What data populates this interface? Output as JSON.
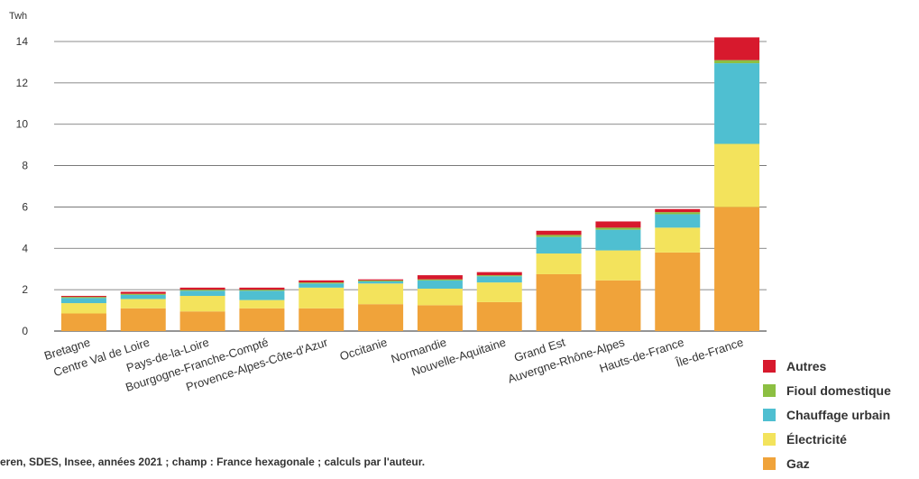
{
  "chart_data": {
    "type": "bar",
    "stacked": true,
    "title": "",
    "xlabel": "",
    "ylabel": "Twh",
    "ylim": [
      0,
      14
    ],
    "yticks": [
      0,
      2,
      4,
      6,
      8,
      10,
      12,
      14
    ],
    "grid": true,
    "legend_position": "bottom-right",
    "categories": [
      "Bretagne",
      "Centre Val de Loire",
      "Pays-de-la-Loire",
      "Bourgogne-Franche-Compté",
      "Provence-Alpes-Côte-d'Azur",
      "Occitanie",
      "Normandie",
      "Nouvelle-Aquitaine",
      "Grand Est",
      "Auvergne-Rhône-Alpes",
      "Hauts-de-France",
      "Île-de-France"
    ],
    "series": [
      {
        "name": "Gaz",
        "color": "#f0a33a",
        "values": [
          0.85,
          1.1,
          0.95,
          1.1,
          1.1,
          1.3,
          1.25,
          1.4,
          2.75,
          2.45,
          3.8,
          6.0
        ]
      },
      {
        "name": "Électricité",
        "color": "#f3e35c",
        "values": [
          0.5,
          0.45,
          0.75,
          0.4,
          1.0,
          1.0,
          0.8,
          0.95,
          1.0,
          1.45,
          1.2,
          3.05
        ]
      },
      {
        "name": "Chauffage urbain",
        "color": "#4fbfd1",
        "values": [
          0.25,
          0.2,
          0.25,
          0.45,
          0.2,
          0.1,
          0.4,
          0.3,
          0.8,
          1.0,
          0.65,
          3.9
        ]
      },
      {
        "name": "Fioul domestique",
        "color": "#8cbf42",
        "values": [
          0.05,
          0.05,
          0.05,
          0.05,
          0.05,
          0.05,
          0.05,
          0.05,
          0.1,
          0.1,
          0.1,
          0.15
        ]
      },
      {
        "name": "Autres",
        "color": "#d7192d",
        "values": [
          0.05,
          0.1,
          0.1,
          0.1,
          0.1,
          0.05,
          0.2,
          0.15,
          0.2,
          0.3,
          0.15,
          1.1
        ]
      }
    ],
    "legend": [
      "Autres",
      "Fioul domestique",
      "Chauffage urbain",
      "Électricité",
      "Gaz"
    ]
  },
  "source_text": "eren, SDES, Insee, années 2021 ; champ : France hexagonale ; calculs par l'auteur."
}
